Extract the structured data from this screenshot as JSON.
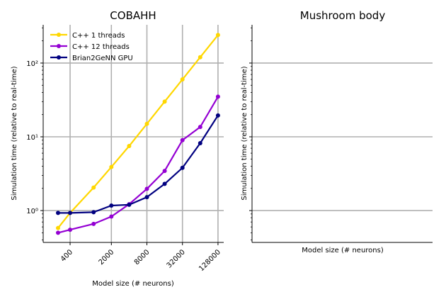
{
  "chart_data": [
    {
      "type": "line",
      "title": "COBAHH",
      "xlabel": "Model size (# neurons)",
      "ylabel": "Simulation time (relative to real-time)",
      "x_scale": "log",
      "y_scale": "log",
      "xlim": [
        140,
        160000
      ],
      "ylim": [
        0.37,
        330
      ],
      "xticks": [
        400,
        2000,
        8000,
        32000,
        128000
      ],
      "xtick_labels": [
        "400",
        "2000",
        "8000",
        "32000",
        "128000"
      ],
      "yticks": [
        1,
        10,
        100
      ],
      "ytick_labels": [
        "10⁰",
        "10¹",
        "10²"
      ],
      "grid": true,
      "legend_position": "top-left",
      "series": [
        {
          "name": "C++  1 threads",
          "color": "#FFD700",
          "x": [
            250,
            400,
            1000,
            2000,
            4000,
            8000,
            16000,
            32000,
            64000,
            128000
          ],
          "y": [
            0.58,
            0.93,
            2.05,
            3.9,
            7.5,
            15,
            30,
            60,
            120,
            240
          ]
        },
        {
          "name": "C++ 12 threads",
          "color": "#9400D3",
          "x": [
            250,
            400,
            1000,
            2000,
            4000,
            8000,
            16000,
            32000,
            64000,
            128000
          ],
          "y": [
            0.5,
            0.55,
            0.66,
            0.83,
            1.22,
            1.97,
            3.45,
            9.0,
            13.6,
            35
          ]
        },
        {
          "name": "Brian2GeNN GPU",
          "color": "#000080",
          "x": [
            250,
            400,
            1000,
            2000,
            4000,
            8000,
            16000,
            32000,
            64000,
            128000
          ],
          "y": [
            0.93,
            0.93,
            0.95,
            1.17,
            1.2,
            1.52,
            2.3,
            3.8,
            8.2,
            19.5
          ]
        }
      ]
    },
    {
      "type": "line",
      "title": "Mushroom body",
      "xlabel": "Model size (# neurons)",
      "ylabel": "Simulation time (relative to real-time)",
      "y_scale": "log",
      "ylim": [
        0.37,
        330
      ],
      "yticks": [
        1,
        10,
        100
      ],
      "grid": true,
      "series": []
    }
  ]
}
